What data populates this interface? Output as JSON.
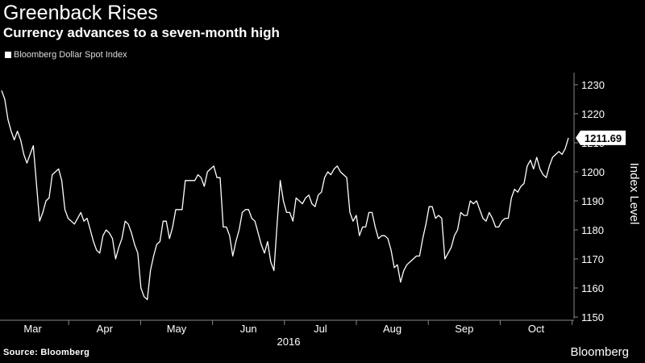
{
  "header": {
    "title": "Greenback Rises",
    "subtitle": "Currency advances to a seven-month high"
  },
  "footer": {
    "source": "Source: Bloomberg",
    "brand": "Bloomberg"
  },
  "chart_data": {
    "type": "line",
    "title": "Greenback Rises",
    "subtitle": "Currency advances to a seven-month high",
    "ylabel": "Index Level",
    "year_label": "2016",
    "ylim": [
      1150,
      1230
    ],
    "yticks": [
      1150,
      1160,
      1170,
      1180,
      1190,
      1200,
      1210,
      1220,
      1230
    ],
    "month_labels": [
      "Mar",
      "Apr",
      "May",
      "Jun",
      "Jul",
      "Aug",
      "Sep",
      "Oct"
    ],
    "last_value_label": "1211.69",
    "legend": "top-left",
    "grid": false,
    "colors": {
      "background": "#000000",
      "line": "#ffffff",
      "axis": "#888888"
    },
    "series": [
      {
        "name": "Bloomberg Dollar Spot Index",
        "values": [
          1228,
          1225,
          1218,
          1214,
          1211,
          1214,
          1211,
          1206,
          1203,
          1206,
          1209,
          1196,
          1183,
          1186,
          1190,
          1191,
          1199,
          1200,
          1201,
          1197,
          1187,
          1184,
          1183,
          1182,
          1184,
          1186,
          1183,
          1184,
          1180,
          1176,
          1173,
          1172,
          1178,
          1180,
          1179,
          1177,
          1170,
          1174,
          1177,
          1183,
          1182,
          1179,
          1175,
          1172,
          1160,
          1157,
          1156,
          1166,
          1171,
          1175,
          1176,
          1183,
          1183,
          1177,
          1181,
          1187,
          1187,
          1187,
          1197,
          1197,
          1197,
          1197,
          1199,
          1198,
          1195,
          1200,
          1201,
          1202,
          1198,
          1198,
          1181,
          1181,
          1178,
          1171,
          1176,
          1180,
          1186,
          1187,
          1187,
          1184,
          1183,
          1179,
          1175,
          1172,
          1176,
          1169,
          1166,
          1182,
          1197,
          1190,
          1186,
          1186,
          1183,
          1191,
          1190,
          1189,
          1191,
          1192,
          1189,
          1188,
          1192,
          1193,
          1198,
          1200,
          1199,
          1201,
          1202,
          1200,
          1199,
          1198,
          1186,
          1183,
          1185,
          1178,
          1181,
          1181,
          1186,
          1186,
          1181,
          1177,
          1178,
          1178,
          1177,
          1173,
          1167,
          1168,
          1162,
          1166,
          1168,
          1169,
          1170,
          1171,
          1171,
          1177,
          1182,
          1188,
          1188,
          1184,
          1185,
          1184,
          1170,
          1172,
          1174,
          1178,
          1180,
          1186,
          1185,
          1185,
          1190,
          1189,
          1190,
          1187,
          1184,
          1183,
          1186,
          1184,
          1181,
          1181,
          1183,
          1184,
          1184,
          1191,
          1194,
          1193,
          1195,
          1196,
          1202,
          1204,
          1201,
          1205,
          1201,
          1199,
          1198,
          1202,
          1205,
          1206,
          1207,
          1206,
          1208,
          1211.69
        ]
      }
    ]
  }
}
